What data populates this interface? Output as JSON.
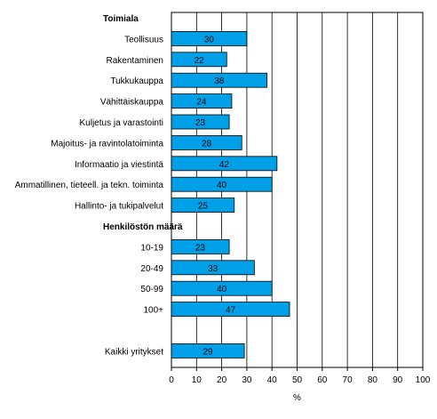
{
  "chart_data": {
    "type": "bar",
    "orientation": "horizontal",
    "xlabel": "%",
    "xlim": [
      0,
      100
    ],
    "xticks": [
      0,
      10,
      20,
      30,
      40,
      50,
      60,
      70,
      80,
      90,
      100
    ],
    "grid": true,
    "bar_color": "#00a0e8",
    "bar_edge_color": "#000000",
    "rows": [
      {
        "kind": "group",
        "label": "Toimiala"
      },
      {
        "kind": "bar",
        "label": "Teollisuus",
        "value": 30
      },
      {
        "kind": "bar",
        "label": "Rakentaminen",
        "value": 22
      },
      {
        "kind": "bar",
        "label": "Tukkukauppa",
        "value": 38
      },
      {
        "kind": "bar",
        "label": "Vähittäiskauppa",
        "value": 24
      },
      {
        "kind": "bar",
        "label": "Kuljetus ja varastointi",
        "value": 23
      },
      {
        "kind": "bar",
        "label": "Majoitus- ja ravintolatoiminta",
        "value": 28
      },
      {
        "kind": "bar",
        "label": "Informaatio ja viestintä",
        "value": 42
      },
      {
        "kind": "bar",
        "label": "Ammatillinen, tieteell. ja tekn. toiminta",
        "value": 40
      },
      {
        "kind": "bar",
        "label": "Hallinto- ja tukipalvelut",
        "value": 25
      },
      {
        "kind": "group",
        "label": "Henkilöstön määrä"
      },
      {
        "kind": "bar",
        "label": "10-19",
        "value": 23
      },
      {
        "kind": "bar",
        "label": "20-49",
        "value": 33
      },
      {
        "kind": "bar",
        "label": "50-99",
        "value": 40
      },
      {
        "kind": "bar",
        "label": "100+",
        "value": 47
      },
      {
        "kind": "spacer"
      },
      {
        "kind": "bar",
        "label": "Kaikki yritykset",
        "value": 29
      }
    ]
  }
}
